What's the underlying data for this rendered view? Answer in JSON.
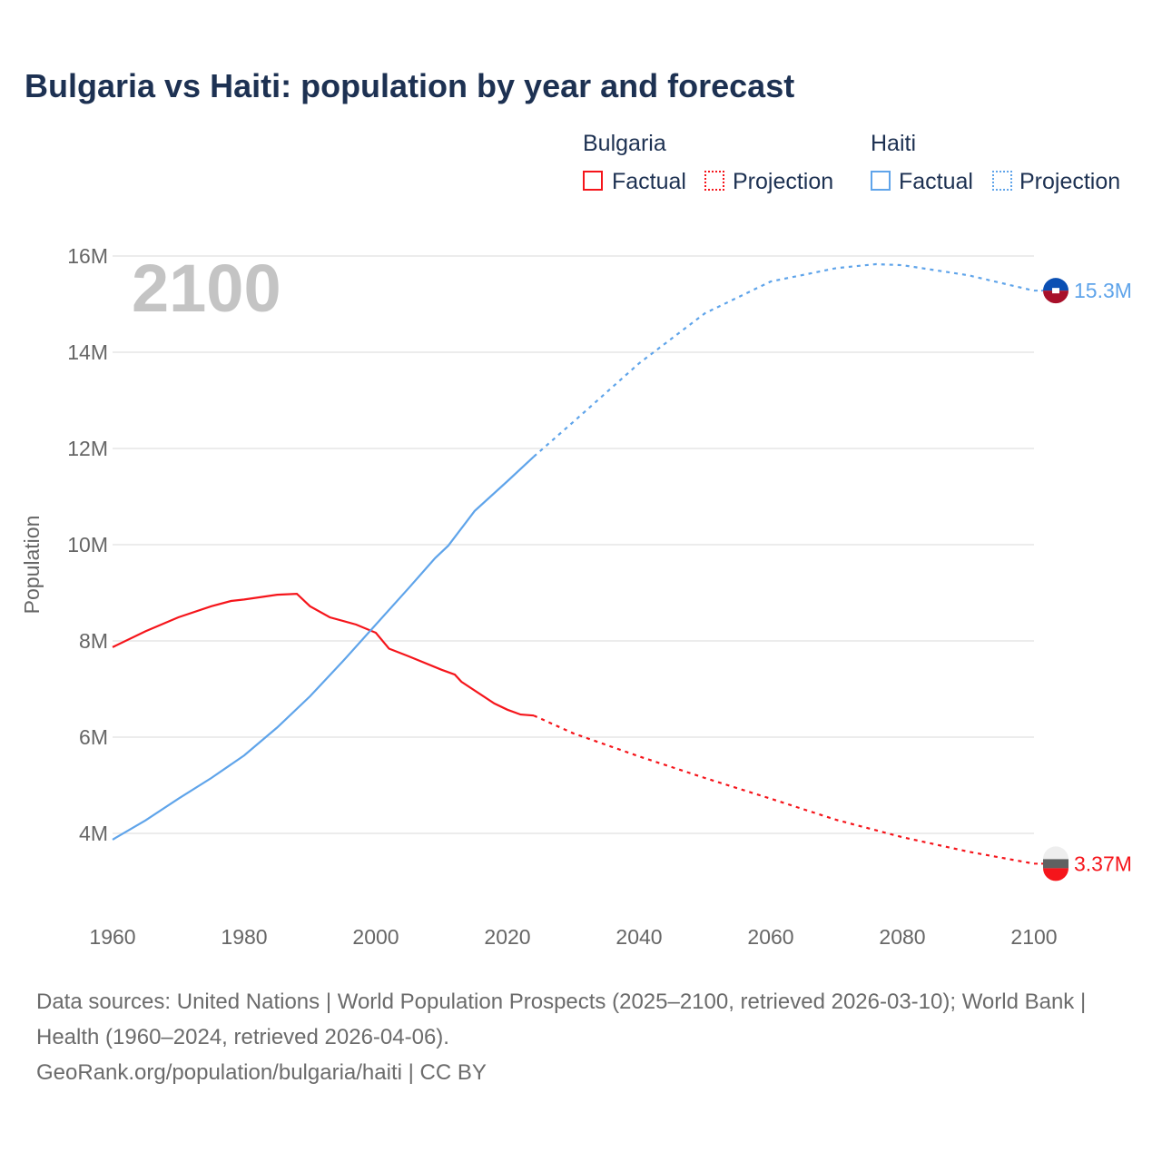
{
  "title": "Bulgaria vs Haiti: population by year and forecast",
  "legend": {
    "groups": [
      {
        "name": "Bulgaria",
        "factual": "Factual",
        "projection": "Projection"
      },
      {
        "name": "Haiti",
        "factual": "Factual",
        "projection": "Projection"
      }
    ]
  },
  "year_label": "2100",
  "footer": {
    "sources": "Data sources: United Nations | World Population Prospects (2025–2100, retrieved 2026-03-10); World Bank | Health (1960–2024, retrieved 2026-04-06).",
    "credit": "GeoRank.org/population/bulgaria/haiti | CC BY"
  },
  "chart_data": {
    "type": "line",
    "title": "Bulgaria vs Haiti: population by year and forecast",
    "xlabel": "",
    "ylabel": "Population",
    "xlim": [
      1960,
      2100
    ],
    "ylim": [
      3,
      16.5
    ],
    "x_ticks": [
      "1960",
      "1980",
      "2000",
      "2020",
      "2040",
      "2060",
      "2080",
      "2100"
    ],
    "y_ticks": [
      {
        "v": 4,
        "label": "4M"
      },
      {
        "v": 6,
        "label": "6M"
      },
      {
        "v": 8,
        "label": "8M"
      },
      {
        "v": 10,
        "label": "10M"
      },
      {
        "v": 12,
        "label": "12M"
      },
      {
        "v": 14,
        "label": "14M"
      },
      {
        "v": 16,
        "label": "16M"
      }
    ],
    "grid": true,
    "legend": "top-right",
    "series": [
      {
        "name": "Bulgaria",
        "color": "#f5151b",
        "end_label": "3.37M",
        "factual": [
          [
            1960,
            7.87
          ],
          [
            1965,
            8.2
          ],
          [
            1970,
            8.49
          ],
          [
            1975,
            8.72
          ],
          [
            1978,
            8.83
          ],
          [
            1980,
            8.86
          ],
          [
            1985,
            8.96
          ],
          [
            1988,
            8.98
          ],
          [
            1990,
            8.72
          ],
          [
            1993,
            8.49
          ],
          [
            1997,
            8.34
          ],
          [
            2000,
            8.17
          ],
          [
            2002,
            7.84
          ],
          [
            2005,
            7.68
          ],
          [
            2010,
            7.4
          ],
          [
            2012,
            7.3
          ],
          [
            2013,
            7.15
          ],
          [
            2018,
            6.7
          ],
          [
            2020,
            6.57
          ],
          [
            2022,
            6.47
          ],
          [
            2024,
            6.45
          ]
        ],
        "projection": [
          [
            2024,
            6.45
          ],
          [
            2030,
            6.08
          ],
          [
            2040,
            5.6
          ],
          [
            2050,
            5.15
          ],
          [
            2060,
            4.72
          ],
          [
            2070,
            4.28
          ],
          [
            2080,
            3.92
          ],
          [
            2090,
            3.62
          ],
          [
            2100,
            3.37
          ]
        ]
      },
      {
        "name": "Haiti",
        "color": "#5fa4ea",
        "end_label": "15.3M",
        "factual": [
          [
            1960,
            3.87
          ],
          [
            1965,
            4.27
          ],
          [
            1970,
            4.72
          ],
          [
            1975,
            5.15
          ],
          [
            1980,
            5.62
          ],
          [
            1985,
            6.2
          ],
          [
            1990,
            6.85
          ],
          [
            1995,
            7.58
          ],
          [
            2000,
            8.34
          ],
          [
            2005,
            9.1
          ],
          [
            2009,
            9.72
          ],
          [
            2011,
            9.98
          ],
          [
            2015,
            10.7
          ],
          [
            2020,
            11.32
          ],
          [
            2024,
            11.83
          ]
        ],
        "projection": [
          [
            2024,
            11.83
          ],
          [
            2030,
            12.55
          ],
          [
            2040,
            13.77
          ],
          [
            2050,
            14.81
          ],
          [
            2060,
            15.47
          ],
          [
            2070,
            15.75
          ],
          [
            2076,
            15.83
          ],
          [
            2080,
            15.81
          ],
          [
            2090,
            15.6
          ],
          [
            2100,
            15.28
          ]
        ]
      }
    ]
  }
}
